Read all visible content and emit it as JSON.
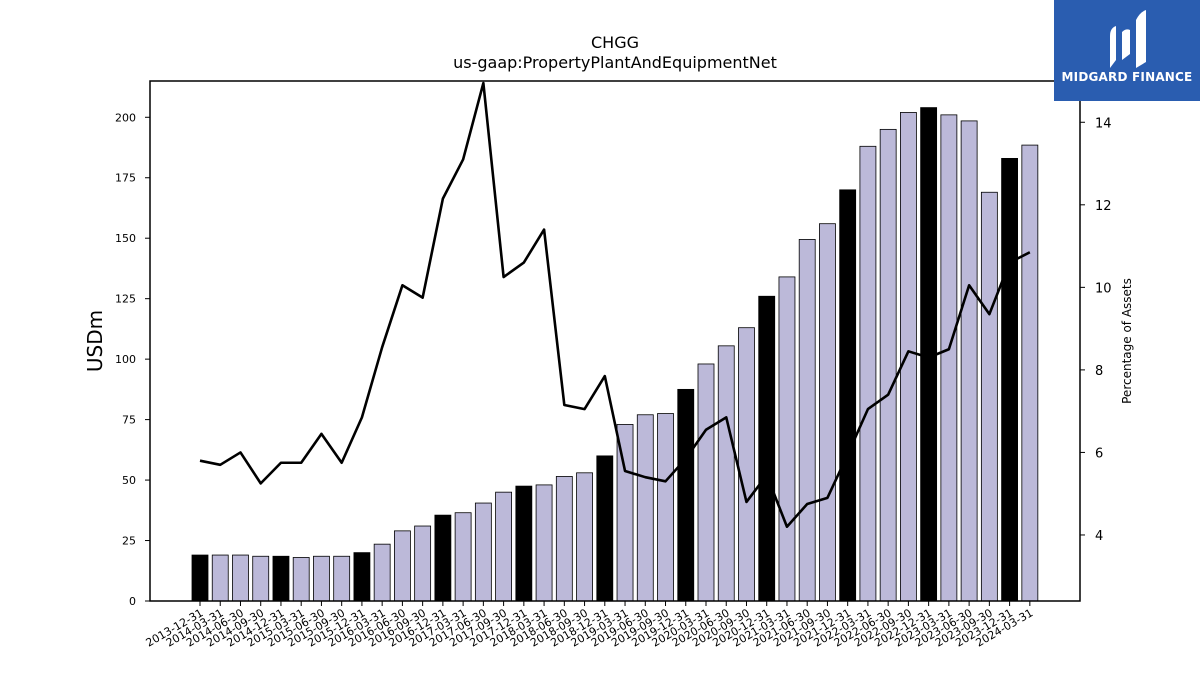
{
  "brand": {
    "name": "MIDGARD FINANCE",
    "logo_icon": "midgard-logo-icon",
    "background": "#2a5db0"
  },
  "chart_data": {
    "type": "bar",
    "title": "CHGG",
    "subtitle": "us-gaap:PropertyPlantAndEquipmentNet",
    "ylabel": "USDm",
    "y2label": "Percentage of Assets",
    "ylim": [
      0,
      215
    ],
    "y2lim": [
      2.4,
      15.0
    ],
    "yticks": [
      0,
      25,
      50,
      75,
      100,
      125,
      150,
      175,
      200
    ],
    "y2ticks": [
      4,
      6,
      8,
      10,
      12,
      14
    ],
    "grid": false,
    "categories": [
      "2013-12-31",
      "2014-03-31",
      "2014-06-30",
      "2014-09-30",
      "2014-12-31",
      "2015-03-31",
      "2015-06-30",
      "2015-09-30",
      "2015-12-31",
      "2016-03-31",
      "2016-06-30",
      "2016-09-30",
      "2016-12-31",
      "2017-03-31",
      "2017-06-30",
      "2017-09-30",
      "2017-12-31",
      "2018-03-31",
      "2018-06-30",
      "2018-09-30",
      "2018-12-31",
      "2019-03-31",
      "2019-06-30",
      "2019-09-30",
      "2019-12-31",
      "2020-03-31",
      "2020-06-30",
      "2020-09-30",
      "2020-12-31",
      "2021-03-31",
      "2021-06-30",
      "2021-09-30",
      "2021-12-31",
      "2022-03-31",
      "2022-06-30",
      "2022-09-30",
      "2022-12-31",
      "2023-03-31",
      "2023-06-30",
      "2023-09-30",
      "2023-12-31",
      "2024-03-31"
    ],
    "series": [
      {
        "type": "bar",
        "values": [
          19,
          19,
          19,
          18.5,
          18.5,
          18,
          18.5,
          18.5,
          20,
          23.5,
          29,
          31,
          35.5,
          36.5,
          40.5,
          45,
          47.5,
          48,
          51.5,
          53,
          60,
          73,
          77,
          77.5,
          87.5,
          98,
          105.5,
          113,
          126,
          134,
          149.5,
          156,
          170,
          188,
          195,
          202,
          204,
          201,
          198.5,
          169,
          183,
          188.5
        ],
        "highlight_color": "#000000",
        "color": "#bcb9d9"
      },
      {
        "type": "line",
        "axis": "right",
        "values": [
          5.8,
          5.7,
          6.0,
          5.25,
          5.75,
          5.75,
          6.45,
          5.75,
          6.85,
          8.55,
          10.05,
          9.75,
          12.15,
          13.1,
          14.95,
          10.25,
          10.6,
          11.4,
          7.15,
          7.05,
          7.85,
          5.55,
          5.4,
          5.3,
          5.85,
          6.55,
          6.85,
          4.8,
          5.45,
          4.2,
          4.75,
          4.9,
          5.95,
          7.05,
          7.4,
          8.45,
          8.3,
          8.5,
          10.05,
          9.35,
          10.6,
          10.85
        ],
        "color": "#000000"
      }
    ]
  }
}
